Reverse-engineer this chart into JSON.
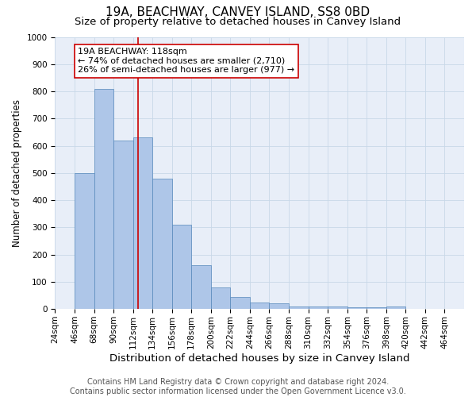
{
  "title": "19A, BEACHWAY, CANVEY ISLAND, SS8 0BD",
  "subtitle": "Size of property relative to detached houses in Canvey Island",
  "xlabel": "Distribution of detached houses by size in Canvey Island",
  "ylabel": "Number of detached properties",
  "bin_labels": [
    "24sqm",
    "46sqm",
    "68sqm",
    "90sqm",
    "112sqm",
    "134sqm",
    "156sqm",
    "178sqm",
    "200sqm",
    "222sqm",
    "244sqm",
    "266sqm",
    "288sqm",
    "310sqm",
    "332sqm",
    "354sqm",
    "376sqm",
    "398sqm",
    "420sqm",
    "442sqm",
    "464sqm"
  ],
  "bin_left_edges": [
    24,
    46,
    68,
    90,
    112,
    134,
    156,
    178,
    200,
    222,
    244,
    266,
    288,
    310,
    332,
    354,
    376,
    398,
    420,
    442,
    464
  ],
  "bar_heights": [
    0,
    500,
    810,
    620,
    630,
    480,
    310,
    160,
    80,
    45,
    25,
    20,
    10,
    10,
    8,
    5,
    5,
    8,
    0,
    0,
    0
  ],
  "bar_facecolor": "#aec6e8",
  "bar_edgecolor": "#5588bb",
  "grid_color": "#c8d8e8",
  "vline_x": 118,
  "vline_color": "#cc0000",
  "annotation_line1": "19A BEACHWAY: 118sqm",
  "annotation_line2": "← 74% of detached houses are smaller (2,710)",
  "annotation_line3": "26% of semi-detached houses are larger (977) →",
  "annotation_box_color": "white",
  "annotation_box_edgecolor": "#cc0000",
  "footer_line1": "Contains HM Land Registry data © Crown copyright and database right 2024.",
  "footer_line2": "Contains public sector information licensed under the Open Government Licence v3.0.",
  "ylim": [
    0,
    1000
  ],
  "yticks": [
    0,
    100,
    200,
    300,
    400,
    500,
    600,
    700,
    800,
    900,
    1000
  ],
  "title_fontsize": 11,
  "subtitle_fontsize": 9.5,
  "xlabel_fontsize": 9.5,
  "ylabel_fontsize": 8.5,
  "tick_fontsize": 7.5,
  "footer_fontsize": 7,
  "annotation_fontsize": 8,
  "background_color": "#e8eef8"
}
